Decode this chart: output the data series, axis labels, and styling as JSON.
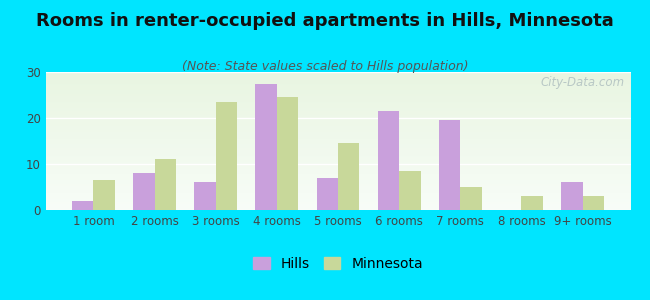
{
  "title": "Rooms in renter-occupied apartments in Hills, Minnesota",
  "subtitle": "(Note: State values scaled to Hills population)",
  "categories": [
    "1 room",
    "2 rooms",
    "3 rooms",
    "4 rooms",
    "5 rooms",
    "6 rooms",
    "7 rooms",
    "8 rooms",
    "9+ rooms"
  ],
  "hills_values": [
    2,
    8,
    6,
    27.5,
    7,
    21.5,
    19.5,
    0,
    6
  ],
  "minnesota_values": [
    6.5,
    11,
    23.5,
    24.5,
    14.5,
    8.5,
    5,
    3,
    3
  ],
  "hills_color": "#c9a0dc",
  "minnesota_color": "#c8d89a",
  "background_outer": "#00e5ff",
  "ylim": [
    0,
    30
  ],
  "yticks": [
    0,
    10,
    20,
    30
  ],
  "watermark": "City-Data.com",
  "title_fontsize": 13,
  "subtitle_fontsize": 9,
  "tick_fontsize": 8.5,
  "legend_fontsize": 10
}
